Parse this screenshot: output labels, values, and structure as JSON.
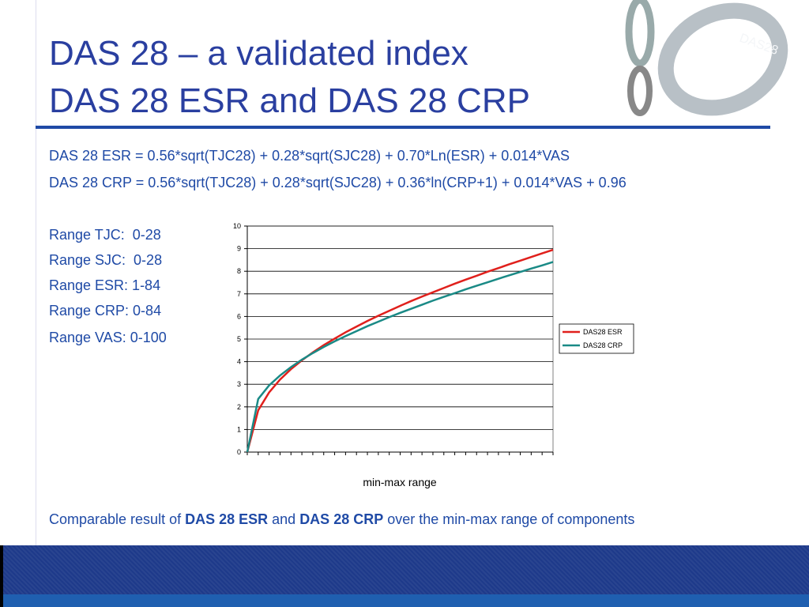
{
  "slide": {
    "title_lines": [
      "DAS 28 – a validated index",
      "DAS 28 ESR and DAS 28 CRP"
    ],
    "image_label": "DAS28",
    "formulas": [
      "DAS 28 ESR = 0.56*sqrt(TJC28) + 0.28*sqrt(SJC28) + 0.70*Ln(ESR) + 0.014*VAS",
      "DAS 28 CRP = 0.56*sqrt(TJC28) + 0.28*sqrt(SJC28) + 0.36*ln(CRP+1) + 0.014*VAS + 0.96"
    ],
    "ranges": [
      "Range TJC:  0-28",
      "Range SJC:  0-28",
      "Range ESR: 1-84",
      "Range CRP: 0-84",
      "Range VAS: 0-100"
    ],
    "conclusion": [
      "Comparable result of ",
      "DAS 28 ESR",
      " and ",
      "DAS 28 CRP",
      " over the min-max range of components"
    ]
  },
  "chart_data": {
    "type": "line",
    "x_label": "min-max range",
    "categories": [
      null,
      null,
      null,
      null,
      null,
      null,
      null,
      null,
      null,
      null,
      null,
      null,
      null,
      null,
      null,
      null,
      null,
      null,
      null,
      null,
      null,
      null,
      null,
      null,
      null,
      null,
      null,
      null,
      null
    ],
    "series": [
      {
        "name": "DAS28 ESR",
        "color": "#e0201c",
        "values": [
          0,
          1.85,
          2.64,
          3.21,
          3.67,
          4.06,
          4.41,
          4.73,
          5.02,
          5.3,
          5.55,
          5.8,
          6.03,
          6.25,
          6.47,
          6.68,
          6.88,
          7.07,
          7.26,
          7.45,
          7.63,
          7.8,
          7.98,
          8.14,
          8.31,
          8.47,
          8.63,
          8.79,
          8.95
        ]
      },
      {
        "name": "DAS28 CRP",
        "color": "#1a8a86",
        "values": [
          0,
          2.35,
          2.95,
          3.39,
          3.76,
          4.09,
          4.38,
          4.65,
          4.9,
          5.13,
          5.35,
          5.57,
          5.77,
          5.97,
          6.16,
          6.34,
          6.52,
          6.7,
          6.87,
          7.03,
          7.2,
          7.36,
          7.51,
          7.67,
          7.82,
          7.97,
          8.12,
          8.26,
          8.41
        ]
      }
    ],
    "ylim": [
      0,
      10
    ],
    "yticks": [
      0,
      1,
      2,
      3,
      4,
      5,
      6,
      7,
      8,
      9,
      10
    ],
    "grid": true,
    "legend": "right"
  }
}
